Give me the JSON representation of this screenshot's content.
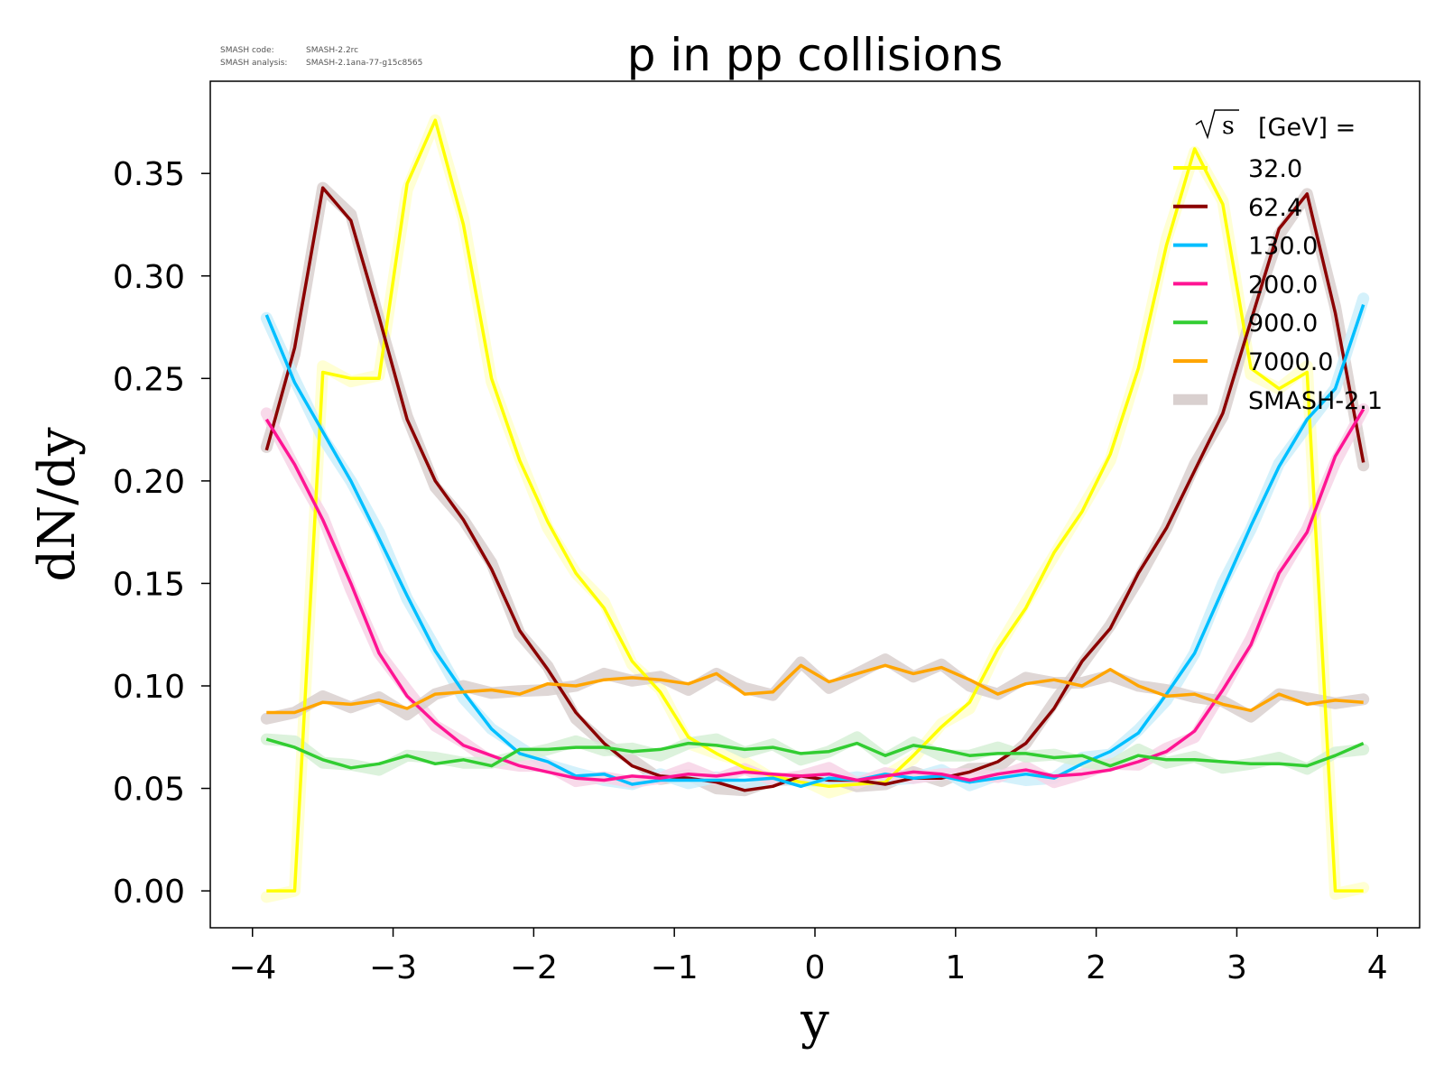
{
  "meta": {
    "line1_label": "SMASH code:",
    "line1_value": "SMASH-2.2rc",
    "line2_label": "SMASH analysis:",
    "line2_value": "SMASH-2.1ana-77-g15c8565"
  },
  "chart_data": {
    "type": "line",
    "title": "p in pp collisions",
    "xlabel": "y",
    "ylabel": "dN/dy",
    "xlim": [
      -4.3,
      4.3
    ],
    "ylim": [
      -0.018,
      0.395
    ],
    "xticks": [
      -4,
      -3,
      -2,
      -1,
      0,
      1,
      2,
      3,
      4
    ],
    "xtick_labels": [
      "−4",
      "−3",
      "−2",
      "−1",
      "0",
      "1",
      "2",
      "3",
      "4"
    ],
    "yticks": [
      0.0,
      0.05,
      0.1,
      0.15,
      0.2,
      0.25,
      0.3,
      0.35
    ],
    "ytick_labels": [
      "0.00",
      "0.05",
      "0.10",
      "0.15",
      "0.20",
      "0.25",
      "0.30",
      "0.35"
    ],
    "grid": false,
    "legend": {
      "placement": "top-right",
      "title_prefix": "√s",
      "title_suffix": "[GeV] =",
      "reference_label": "SMASH-2.1",
      "reference_color": "#d9d0cf"
    },
    "x": [
      -3.9,
      -3.7,
      -3.5,
      -3.3,
      -3.1,
      -2.9,
      -2.7,
      -2.5,
      -2.3,
      -2.1,
      -1.9,
      -1.7,
      -1.5,
      -1.3,
      -1.1,
      -0.9,
      -0.7,
      -0.5,
      -0.3,
      -0.1,
      0.1,
      0.3,
      0.5,
      0.7,
      0.9,
      1.1,
      1.3,
      1.5,
      1.7,
      1.9,
      2.1,
      2.3,
      2.5,
      2.7,
      2.9,
      3.1,
      3.3,
      3.5,
      3.7,
      3.9
    ],
    "series": [
      {
        "name": "32.0",
        "color": "#ffff00",
        "values": [
          0.0,
          0.0,
          0.253,
          0.25,
          0.25,
          0.345,
          0.376,
          0.325,
          0.25,
          0.21,
          0.18,
          0.155,
          0.138,
          0.112,
          0.097,
          0.075,
          0.067,
          0.06,
          0.056,
          0.053,
          0.051,
          0.052,
          0.053,
          0.066,
          0.08,
          0.092,
          0.118,
          0.138,
          0.165,
          0.185,
          0.213,
          0.255,
          0.315,
          0.362,
          0.335,
          0.255,
          0.245,
          0.253,
          0.0,
          0.0
        ]
      },
      {
        "name": "62.4",
        "color": "#8b0000",
        "values": [
          0.215,
          0.265,
          0.343,
          0.327,
          0.28,
          0.23,
          0.2,
          0.181,
          0.157,
          0.127,
          0.108,
          0.087,
          0.072,
          0.061,
          0.056,
          0.055,
          0.053,
          0.049,
          0.051,
          0.056,
          0.054,
          0.054,
          0.052,
          0.055,
          0.055,
          0.058,
          0.063,
          0.072,
          0.089,
          0.112,
          0.128,
          0.155,
          0.177,
          0.205,
          0.233,
          0.278,
          0.323,
          0.34,
          0.282,
          0.209
        ]
      },
      {
        "name": "130.0",
        "color": "#00bfff",
        "values": [
          0.281,
          0.248,
          0.224,
          0.2,
          0.172,
          0.144,
          0.117,
          0.097,
          0.079,
          0.067,
          0.063,
          0.056,
          0.057,
          0.052,
          0.054,
          0.054,
          0.054,
          0.054,
          0.055,
          0.051,
          0.055,
          0.054,
          0.057,
          0.055,
          0.056,
          0.053,
          0.055,
          0.057,
          0.055,
          0.062,
          0.068,
          0.077,
          0.096,
          0.116,
          0.147,
          0.178,
          0.207,
          0.23,
          0.245,
          0.286
        ]
      },
      {
        "name": "200.0",
        "color": "#ff1493",
        "values": [
          0.23,
          0.208,
          0.181,
          0.15,
          0.116,
          0.095,
          0.082,
          0.071,
          0.066,
          0.061,
          0.058,
          0.055,
          0.054,
          0.056,
          0.055,
          0.057,
          0.056,
          0.058,
          0.057,
          0.056,
          0.057,
          0.054,
          0.056,
          0.058,
          0.057,
          0.054,
          0.057,
          0.059,
          0.056,
          0.057,
          0.059,
          0.063,
          0.068,
          0.078,
          0.098,
          0.12,
          0.155,
          0.175,
          0.212,
          0.235
        ]
      },
      {
        "name": "900.0",
        "color": "#32cd32",
        "values": [
          0.074,
          0.07,
          0.064,
          0.06,
          0.062,
          0.066,
          0.062,
          0.064,
          0.061,
          0.069,
          0.069,
          0.07,
          0.07,
          0.068,
          0.069,
          0.072,
          0.071,
          0.069,
          0.07,
          0.067,
          0.068,
          0.072,
          0.066,
          0.071,
          0.069,
          0.066,
          0.067,
          0.067,
          0.065,
          0.066,
          0.061,
          0.066,
          0.064,
          0.064,
          0.063,
          0.062,
          0.062,
          0.061,
          0.066,
          0.072
        ]
      },
      {
        "name": "7000.0",
        "color": "#ffa500",
        "values": [
          0.087,
          0.087,
          0.092,
          0.091,
          0.093,
          0.089,
          0.096,
          0.097,
          0.098,
          0.096,
          0.101,
          0.1,
          0.103,
          0.104,
          0.103,
          0.101,
          0.106,
          0.096,
          0.097,
          0.11,
          0.102,
          0.106,
          0.11,
          0.106,
          0.109,
          0.103,
          0.096,
          0.101,
          0.103,
          0.1,
          0.108,
          0.1,
          0.095,
          0.096,
          0.091,
          0.088,
          0.096,
          0.091,
          0.093,
          0.092
        ]
      }
    ]
  }
}
